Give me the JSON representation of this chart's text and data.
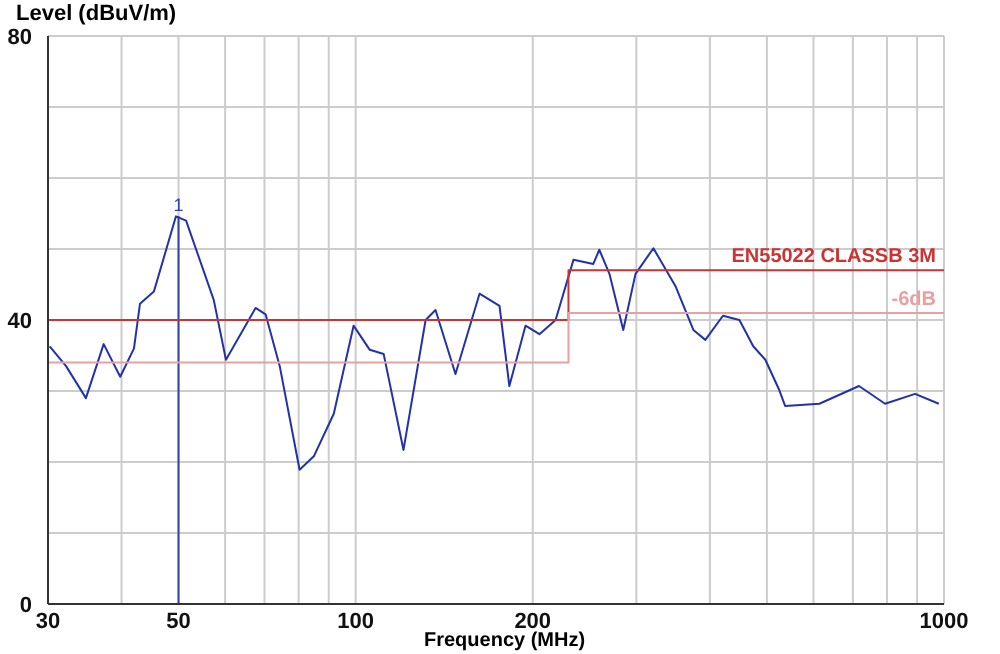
{
  "chart_data": {
    "type": "line",
    "xlabel": "Frequency (MHz)",
    "ylabel": "Level (dBuV/m)",
    "log": "x",
    "grid": true,
    "marker": "none",
    "line_style": "solid",
    "xlim": [
      30,
      1000
    ],
    "ylim": [
      0,
      80
    ],
    "xticks": [
      30,
      {
        "value": 40,
        "label": null
      },
      50,
      {
        "value": 60,
        "label": null
      },
      {
        "value": 70,
        "label": null
      },
      {
        "value": 80,
        "label": null
      },
      {
        "value": 90,
        "label": null
      },
      100,
      200,
      {
        "value": 300,
        "label": null
      },
      {
        "value": 400,
        "label": null
      },
      {
        "value": 500,
        "label": null
      },
      {
        "value": 600,
        "label": null
      },
      {
        "value": 700,
        "label": null
      },
      {
        "value": 800,
        "label": null
      },
      {
        "value": 900,
        "label": null
      },
      1000
    ],
    "yticks": [
      0,
      {
        "value": 10,
        "label": null
      },
      {
        "value": 20,
        "label": null
      },
      {
        "value": 30,
        "label": null
      },
      40,
      {
        "value": 50,
        "label": null
      },
      {
        "value": 60,
        "label": null
      },
      {
        "value": 70,
        "label": null
      },
      80
    ],
    "series": [
      {
        "type": "line",
        "color": "#2233aa",
        "x": [
          30.2,
          32.2,
          34.8,
          37.3,
          39.8,
          42.0,
          43.0,
          45.4,
          49.5,
          51.5,
          57.4,
          60.2,
          67.6,
          70.3,
          74.3,
          80.3,
          84.9,
          91.8,
          99.2,
          105.7,
          111.6,
          120.6,
          131.5,
          136.7,
          147.8,
          162.4,
          175.6,
          182.5,
          194.4,
          205.3,
          218.7,
          234.6,
          253.5,
          259.5,
          270,
          285,
          299,
          320.7,
          349.5,
          375,
          393,
          421,
          449,
          474,
          497,
          525,
          537,
          614,
          717,
          794,
          893,
          980
        ],
        "values": [
          36.3,
          33.5,
          29,
          36.6,
          32,
          36,
          42.3,
          44,
          54.6,
          54,
          42.8,
          34.4,
          41.7,
          40.8,
          33.5,
          18.9,
          20.8,
          26.8,
          39.2,
          35.8,
          35.2,
          21.7,
          40,
          41.4,
          32.4,
          43.7,
          42,
          30.7,
          39.2,
          38,
          40,
          48.5,
          47.9,
          49.9,
          46.5,
          38.6,
          46.5,
          50.1,
          44.8,
          38.6,
          37.2,
          40.6,
          40,
          36.3,
          34.4,
          30.1,
          27.9,
          28.2,
          30.7,
          28.2,
          29.6,
          28.2
        ]
      },
      {
        "type": "step",
        "name": "EN55022 CLASSB 3M",
        "color": "#cc3333",
        "x": [
          30,
          230,
          1000
        ],
        "values": [
          40,
          47,
          47
        ]
      },
      {
        "type": "step",
        "name": "-6dB",
        "color": "#e8a0a0",
        "x": [
          30,
          230,
          1000
        ],
        "values": [
          34,
          41,
          41
        ]
      }
    ],
    "ref_lines": [
      {
        "axis": "x",
        "value": 50,
        "color": "#3344aa"
      }
    ],
    "annotations": [
      {
        "text": "1",
        "x": 50,
        "y": 54
      }
    ]
  }
}
